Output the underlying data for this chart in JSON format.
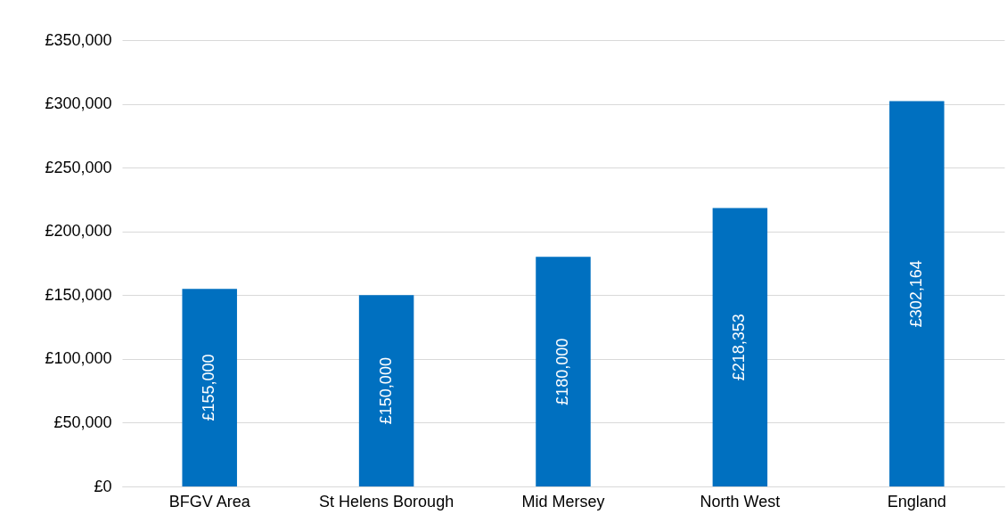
{
  "chart_data": {
    "type": "bar",
    "categories": [
      "BFGV Area",
      "St Helens Borough",
      "Mid Mersey",
      "North West",
      "England"
    ],
    "values": [
      155000,
      150000,
      180000,
      218353,
      302164
    ],
    "value_labels": [
      "£155,000",
      "£150,000",
      "£180,000",
      "£218,353",
      "£302,164"
    ],
    "color": "#0070c0",
    "ylim": [
      0,
      350000
    ],
    "yticks": [
      {
        "value": 0,
        "label": "£0"
      },
      {
        "value": 50000,
        "label": "£50,000"
      },
      {
        "value": 100000,
        "label": "£100,000"
      },
      {
        "value": 150000,
        "label": "£150,000"
      },
      {
        "value": 200000,
        "label": "£200,000"
      },
      {
        "value": 250000,
        "label": "£250,000"
      },
      {
        "value": 300000,
        "label": "£300,000"
      },
      {
        "value": 350000,
        "label": "£350,000"
      }
    ],
    "grid": "y"
  }
}
